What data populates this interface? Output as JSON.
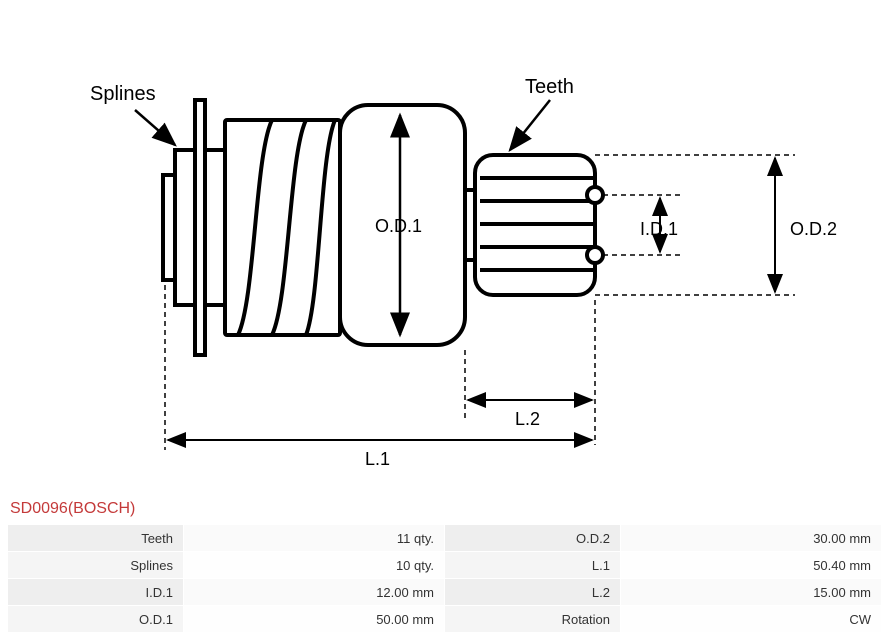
{
  "title_text": "SD0096(BOSCH)",
  "title_color": "#c43a3a",
  "diagram": {
    "labels": {
      "splines": "Splines",
      "teeth": "Teeth",
      "od1": "O.D.1",
      "od2": "O.D.2",
      "id1": "I.D.1",
      "l1": "L.1",
      "l2": "L.2"
    },
    "stroke_color": "#000000",
    "label_fontsize": 20,
    "small_label_fontsize": 18
  },
  "specs": {
    "rows": [
      {
        "label1": "Teeth",
        "value1": "11 qty.",
        "label2": "O.D.2",
        "value2": "30.00 mm"
      },
      {
        "label1": "Splines",
        "value1": "10 qty.",
        "label2": "L.1",
        "value2": "50.40 mm"
      },
      {
        "label1": "I.D.1",
        "value1": "12.00 mm",
        "label2": "L.2",
        "value2": "15.00 mm"
      },
      {
        "label1": "O.D.1",
        "value1": "50.00 mm",
        "label2": "Rotation",
        "value2": "CW"
      }
    ],
    "label_bg_even": "#eeeeee",
    "value_bg_even": "#fafafa",
    "label_bg_odd": "#f5f5f5",
    "value_bg_odd": "#fefefe"
  }
}
